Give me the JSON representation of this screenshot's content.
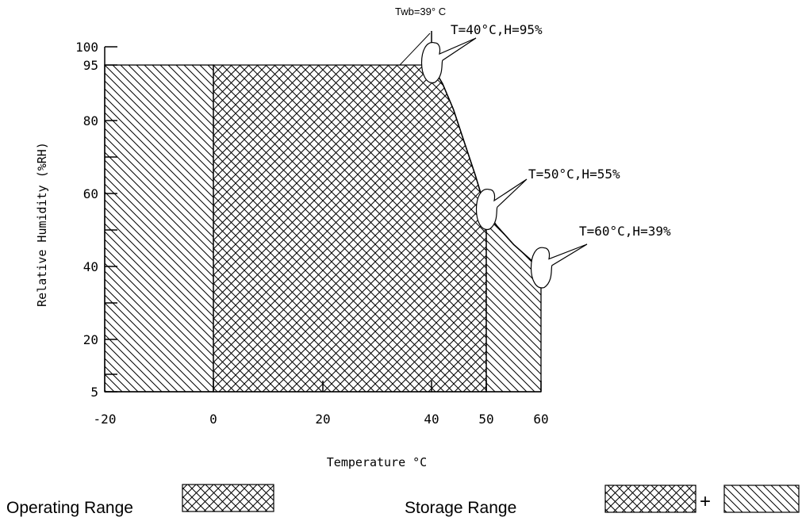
{
  "chart_data": {
    "type": "area",
    "title": "",
    "xlabel": "Temperature °C",
    "ylabel": "Relative Humidity (%RH)",
    "xlim": [
      -20,
      60
    ],
    "ylim": [
      5,
      100
    ],
    "x_ticks": [
      -20,
      0,
      20,
      40,
      50,
      60
    ],
    "x_tick_labels": [
      "-20",
      "0",
      "20",
      "40",
      "50",
      "60"
    ],
    "y_ticks": [
      5,
      20,
      40,
      60,
      80,
      95,
      100
    ],
    "y_tick_labels": [
      "5",
      "20",
      "40",
      "60",
      "80",
      "95",
      "100"
    ],
    "grid": false,
    "series": [
      {
        "name": "Operating Range",
        "pattern": "crosshatch",
        "x_range": [
          0,
          50
        ],
        "boundary": [
          [
            0,
            5
          ],
          [
            0,
            95
          ],
          [
            40,
            95
          ],
          [
            45,
            78
          ],
          [
            50,
            55
          ],
          [
            50,
            5
          ]
        ]
      },
      {
        "name": "Storage Range",
        "pattern": "crosshatch+diagonal",
        "x_range": [
          -20,
          60
        ],
        "boundary": [
          [
            -20,
            5
          ],
          [
            -20,
            95
          ],
          [
            40,
            95
          ],
          [
            45,
            78
          ],
          [
            50,
            55
          ],
          [
            60,
            39
          ],
          [
            60,
            5
          ]
        ]
      }
    ],
    "wet_bulb_line": {
      "label": "Twb=39° C",
      "x": 40,
      "y_top": 100
    },
    "annotations": [
      {
        "text": "T=40°C,H=95%",
        "x": 40,
        "y": 95
      },
      {
        "text": "T=50°C,H=55%",
        "x": 50,
        "y": 55
      },
      {
        "text": "T=60°C,H=39%",
        "x": 60,
        "y": 39
      }
    ]
  },
  "legend": {
    "placement": "bottom",
    "operating_label": "Operating Range",
    "storage_label": "Storage Range",
    "plus": "+"
  }
}
